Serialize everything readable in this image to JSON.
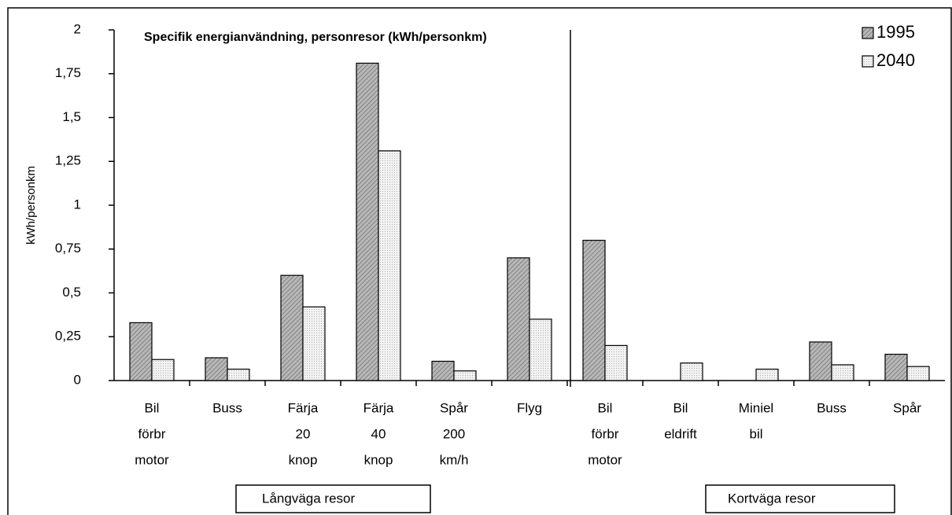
{
  "chart_data": {
    "type": "bar",
    "title": "Specifik energianvändning, personresor (kWh/personkm)",
    "y_label": "kWh/personkm",
    "categories": [
      [
        "Bil",
        "förbr",
        "motor"
      ],
      [
        "Buss"
      ],
      [
        "Färja",
        "20",
        "knop"
      ],
      [
        "Färja",
        "40",
        "knop"
      ],
      [
        "Spår",
        "200",
        "km/h"
      ],
      [
        "Flyg"
      ],
      [
        "Bil",
        "förbr",
        "motor"
      ],
      [
        "Bil",
        "eldrift"
      ],
      [
        "Miniel",
        "bil"
      ],
      [
        "Buss"
      ],
      [
        "Spår"
      ]
    ],
    "series": [
      {
        "name": "1995",
        "color": "#a6a6a6",
        "values": [
          0.33,
          0.13,
          0.6,
          1.81,
          0.11,
          0.7,
          0.8,
          null,
          null,
          0.22,
          0.15
        ]
      },
      {
        "name": "2040",
        "color": "#e6e6e6",
        "values": [
          0.12,
          0.065,
          0.42,
          1.31,
          0.055,
          0.35,
          0.2,
          0.1,
          0.065,
          0.09,
          0.08
        ]
      }
    ],
    "ylim": [
      0,
      2
    ],
    "yticks": [
      0,
      {
        "value": 0.25,
        "label": "0,25"
      },
      {
        "value": 0.5,
        "label": "0,5"
      },
      {
        "value": 0.75,
        "label": "0,75"
      },
      1,
      {
        "value": 1.25,
        "label": "1,25"
      },
      {
        "value": 1.5,
        "label": "1,5"
      },
      {
        "value": 1.75,
        "label": "1,75"
      },
      2
    ],
    "grid": false,
    "legend": "top-right",
    "groups": [
      "Långväga resor",
      "Kortväga resor"
    ]
  }
}
